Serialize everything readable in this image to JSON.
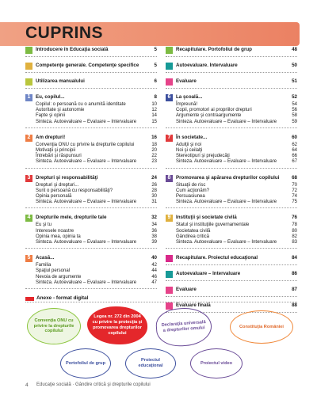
{
  "title": "CUPRINS",
  "colors": {
    "yellow": "#e0b13e",
    "green": "#7dbb43",
    "olive": "#b9c63c",
    "blue": "#6f86c6",
    "navy": "#3c4f9e",
    "orange": "#ef7d44",
    "red": "#e23a3b",
    "pink": "#e6438a",
    "purple": "#6a4b97",
    "teal": "#179a97",
    "magenta": "#d9298a"
  },
  "left": [
    {
      "color": "green",
      "num": "",
      "title": "Introducere în Educaţia socială",
      "page": "5",
      "items": []
    },
    {
      "color": "yellow",
      "num": "",
      "title": "Competenţe generale. Competenţe specifice",
      "page": "5",
      "items": []
    },
    {
      "color": "olive",
      "num": "",
      "title": "Utilizarea manualului",
      "page": "6",
      "items": []
    },
    {
      "color": "blue",
      "num": "1",
      "title": "Eu, copilul...",
      "page": "8",
      "items": [
        [
          "Copilul: o persoană cu o anumită identitate",
          "10"
        ],
        [
          "Autoritate şi autonomie",
          "12"
        ],
        [
          "Fapte şi opinii",
          "14"
        ],
        [
          "Sinteza. Autoevaluare – Evaluare – Intervaluare",
          "15"
        ]
      ]
    },
    {
      "color": "orange",
      "num": "2",
      "title": "Am drepturi!",
      "page": "16",
      "items": [
        [
          "Convenţia ONU cu privire la drepturile copilului",
          "18"
        ],
        [
          "Motivaţii şi principii",
          "20"
        ],
        [
          "Întrebări şi răspunsuri",
          "22"
        ],
        [
          "Sinteza. Autoevaluare – Evaluare – Intervaluare",
          "23"
        ]
      ]
    },
    {
      "color": "red",
      "num": "3",
      "title": "Drepturi şi responsabilităţi",
      "page": "24",
      "items": [
        [
          "Drepturi şi drepturi...",
          "26"
        ],
        [
          "Sunt o persoană cu responsabilităţi?",
          "28"
        ],
        [
          "Opinia personală",
          "30"
        ],
        [
          "Sinteza. Autoevaluare – Evaluare – Intervaluare",
          "31"
        ]
      ]
    },
    {
      "color": "green",
      "num": "4",
      "title": "Drepturile mele, drepturile tale",
      "page": "32",
      "items": [
        [
          "Eu şi tu",
          "34"
        ],
        [
          "Interesele noastre",
          "36"
        ],
        [
          "Opinia mea, opinia ta",
          "38"
        ],
        [
          "Sinteza. Autoevaluare – Evaluare – Intervaluare",
          "39"
        ]
      ]
    },
    {
      "color": "orange",
      "num": "5",
      "title": "Acasă...",
      "page": "40",
      "items": [
        [
          "Familia",
          "42"
        ],
        [
          "Spaţiul personal",
          "44"
        ],
        [
          "Nevoia de argumente",
          "46"
        ],
        [
          "Sinteza. Autoevaluare – Evaluare – Intervaluare",
          "47"
        ]
      ]
    }
  ],
  "right": [
    {
      "color": "green",
      "num": "",
      "title": "Recapitulare. Portofoliul de grup",
      "page": "48",
      "items": []
    },
    {
      "color": "teal",
      "num": "",
      "title": "Autoevaluare. Intervaluare",
      "page": "50",
      "items": []
    },
    {
      "color": "pink",
      "num": "",
      "title": "Evaluare",
      "page": "51",
      "items": []
    },
    {
      "color": "navy",
      "num": "6",
      "title": "La şcoală...",
      "page": "52",
      "items": [
        [
          "Împreună!",
          "54"
        ],
        [
          "Copii, promotori ai propriilor drepturi",
          "56"
        ],
        [
          "Argumente şi contraargumente",
          "58"
        ],
        [
          "Sinteza. Autoevaluare – Evaluare – Intervaluare",
          "59"
        ]
      ]
    },
    {
      "color": "red",
      "num": "7",
      "title": "În societate...",
      "page": "60",
      "items": [
        [
          "Adulţii şi noi",
          "62"
        ],
        [
          "Noi şi ceilalţi",
          "64"
        ],
        [
          "Stereotipuri şi prejudecăţi",
          "66"
        ],
        [
          "Sinteza. Autoevaluare – Evaluare – Intervaluare",
          "67"
        ]
      ]
    },
    {
      "color": "purple",
      "num": "8",
      "title": "Promovarea şi apărarea drepturilor copilului",
      "page": "68",
      "items": [
        [
          "Situaţii de risc",
          "70"
        ],
        [
          "Cum acţionăm?",
          "72"
        ],
        [
          "Persuasiunea",
          "74"
        ],
        [
          "Sinteza. Autoevaluare – Evaluare – Intervaluare",
          "75"
        ]
      ]
    },
    {
      "color": "yellow",
      "num": "9",
      "title": "Instituţii şi societate civilă",
      "page": "76",
      "items": [
        [
          "Statul şi instituţiile guvernamentale",
          "78"
        ],
        [
          "Societatea civilă",
          "80"
        ],
        [
          "Gândirea critică",
          "82"
        ],
        [
          "Sinteza. Autoevaluare – Evaluare – Intervaluare",
          "83"
        ]
      ]
    },
    {
      "color": "magenta",
      "num": "",
      "title": "Recapitulare. Proiectul educaţional",
      "page": "84",
      "items": []
    },
    {
      "color": "teal",
      "num": "",
      "title": "Autoevaluare – Intervaluare",
      "page": "86",
      "items": []
    },
    {
      "color": "pink",
      "num": "",
      "title": "Evaluare",
      "page": "87",
      "items": []
    },
    {
      "color": "pink",
      "num": "",
      "title": "Evaluare finală",
      "page": "88",
      "items": []
    }
  ],
  "annex": {
    "label": "Anexe - format digital",
    "items": [
      {
        "text": "Convenţia ONU cu privire la drepturile copilului",
        "color": "#8cc63f",
        "name": "annex-conventia-onu"
      },
      {
        "text": "Legea nr. 272 din 2004 cu privire la protecţia şi promovarea drepturilor copilului",
        "color": "#e4272b",
        "name": "annex-legea-272"
      },
      {
        "text": "Declaraţia universală a drepturilor omului",
        "color": "#6a4b97",
        "name": "annex-declaratia"
      },
      {
        "text": "Constituţia României",
        "color": "#f08a3c",
        "name": "annex-constitutia"
      },
      {
        "text": "Portofoliul de grup",
        "color": "#3c4f9e",
        "name": "annex-portofoliu"
      },
      {
        "text": "Proiectul educaţional",
        "color": "#3c4f9e",
        "name": "annex-proiect-educational"
      },
      {
        "text": "Proiectul video",
        "color": "#6a4b97",
        "name": "annex-proiect-video"
      }
    ]
  },
  "footer": {
    "page": "4",
    "text": "Educaţie socială · Gândire critică şi drepturile copilului"
  }
}
